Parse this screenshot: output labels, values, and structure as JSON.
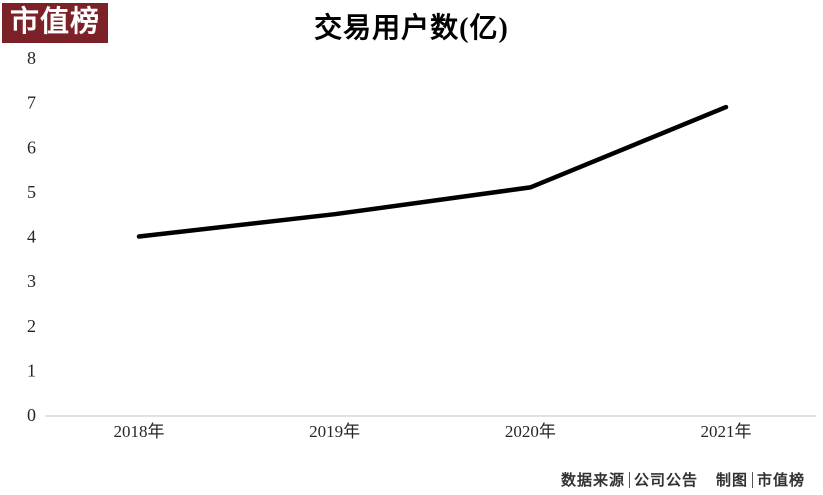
{
  "logo": {
    "text": "市值榜"
  },
  "title": "交易用户数(亿)",
  "chart_data": {
    "type": "line",
    "title": "交易用户数(亿)",
    "categories": [
      "2018年",
      "2019年",
      "2020年",
      "2021年"
    ],
    "values": [
      4.0,
      4.5,
      5.1,
      6.9
    ],
    "series_name": "交易用户数",
    "xlabel": "",
    "ylabel": "",
    "ylim": [
      0,
      8
    ],
    "y_ticks": [
      0,
      1,
      2,
      3,
      4,
      5,
      6,
      7,
      8
    ],
    "grid": false,
    "legend": false,
    "line_color": "#000000"
  },
  "footer": {
    "source_label": "数据来源",
    "source_value": "公司公告",
    "credit_label": "制图",
    "credit_value": "市值榜"
  },
  "colors": {
    "logo_bg": "#7d2128",
    "logo_text": "#ffffff",
    "line": "#000000",
    "axis_line": "#d9d9d9",
    "tick_text": "#262626"
  }
}
